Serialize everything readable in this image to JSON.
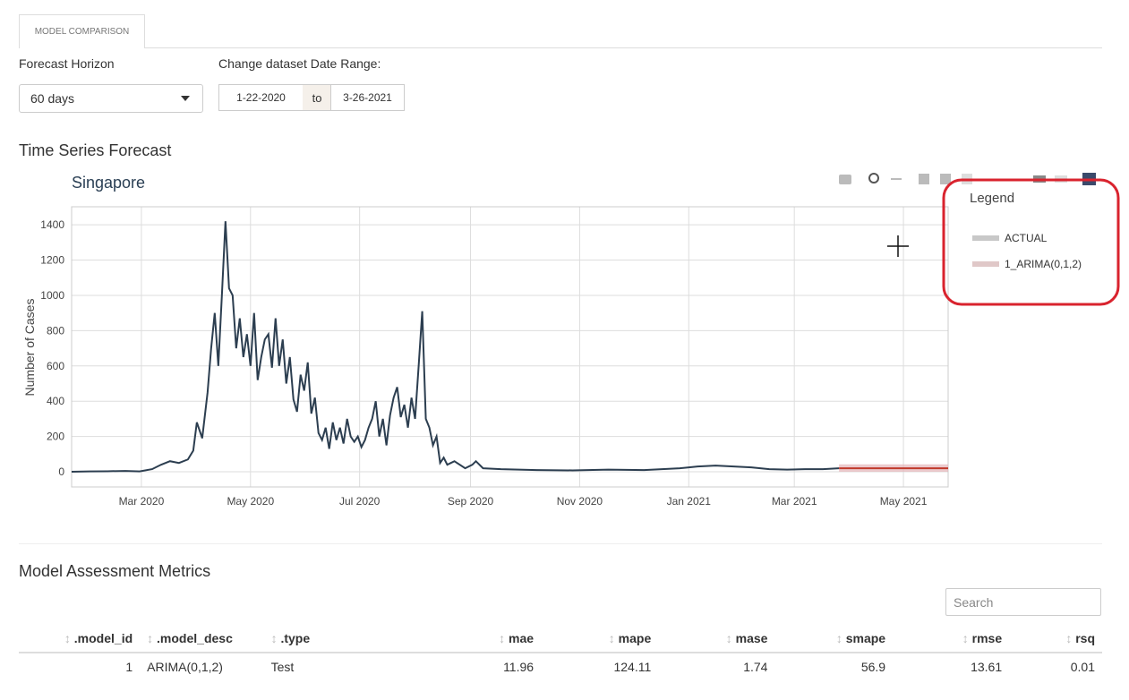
{
  "tab": "MODEL COMPARISON",
  "controls": {
    "horizon_label": "Forecast Horizon",
    "horizon_value": "60 days",
    "range_label": "Change dataset Date Range:",
    "range_start": "1-22-2020",
    "range_sep": "to",
    "range_end": "3-26-2021"
  },
  "section_forecast": "Time Series Forecast",
  "chart_data": {
    "type": "line",
    "title": "Singapore",
    "y_label": "Number of Cases",
    "legend_title": "Legend",
    "legend_position": "right",
    "grid": true,
    "xlim": [
      0,
      490
    ],
    "xticks": [
      {
        "value": 39,
        "label": "Mar 2020"
      },
      {
        "value": 100,
        "label": "May 2020"
      },
      {
        "value": 161,
        "label": "Jul 2020"
      },
      {
        "value": 223,
        "label": "Sep 2020"
      },
      {
        "value": 284,
        "label": "Nov 2020"
      },
      {
        "value": 345,
        "label": "Jan 2021"
      },
      {
        "value": 404,
        "label": "Mar 2021"
      },
      {
        "value": 465,
        "label": "May 2021"
      }
    ],
    "ylim": [
      -86,
      1502
    ],
    "yticks": [
      0,
      200,
      400,
      600,
      800,
      1000,
      1200,
      1400
    ],
    "series": [
      {
        "name": "ACTUAL",
        "color": "#2c3e50",
        "legend_color": "#c8c8c8",
        "x": [
          0,
          10,
          20,
          30,
          38,
          45,
          50,
          55,
          60,
          65,
          68,
          70,
          73,
          76,
          78,
          80,
          82,
          84,
          86,
          88,
          90,
          92,
          94,
          96,
          98,
          100,
          102,
          104,
          106,
          108,
          110,
          112,
          114,
          116,
          118,
          120,
          122,
          124,
          126,
          128,
          130,
          132,
          134,
          136,
          138,
          140,
          142,
          144,
          146,
          148,
          150,
          152,
          154,
          156,
          158,
          160,
          162,
          164,
          166,
          168,
          170,
          172,
          174,
          176,
          178,
          180,
          182,
          184,
          186,
          188,
          190,
          192,
          194,
          196,
          198,
          200,
          202,
          204,
          206,
          208,
          210,
          212,
          214,
          220,
          224,
          226,
          230,
          240,
          260,
          280,
          300,
          320,
          340,
          350,
          360,
          370,
          380,
          390,
          400,
          410,
          420,
          429
        ],
        "values": [
          0,
          2,
          3,
          5,
          2,
          15,
          40,
          60,
          50,
          70,
          120,
          280,
          190,
          450,
          700,
          900,
          600,
          1000,
          1420,
          1040,
          1000,
          700,
          870,
          650,
          780,
          600,
          900,
          520,
          650,
          750,
          780,
          590,
          870,
          600,
          750,
          500,
          650,
          410,
          340,
          550,
          460,
          620,
          330,
          420,
          220,
          180,
          250,
          130,
          280,
          180,
          250,
          160,
          300,
          200,
          170,
          200,
          140,
          180,
          250,
          300,
          400,
          200,
          300,
          150,
          320,
          420,
          480,
          310,
          380,
          250,
          420,
          300,
          600,
          910,
          300,
          250,
          150,
          200,
          50,
          80,
          40,
          50,
          60,
          20,
          40,
          60,
          20,
          15,
          10,
          8,
          12,
          10,
          20,
          30,
          35,
          30,
          25,
          15,
          12,
          15,
          15,
          20
        ]
      },
      {
        "name": "1_ARIMA(0,1,2)",
        "color": "#c0392b",
        "legend_color": "#e0c8c8",
        "band_color": "#e4b4b8",
        "x": [
          429,
          490
        ],
        "values": [
          20,
          20
        ],
        "lower": [
          0,
          0
        ],
        "upper": [
          42,
          42
        ]
      }
    ]
  },
  "section_metrics": "Model Assessment Metrics",
  "search_placeholder": "Search",
  "table": {
    "header": [
      ".model_id",
      ".model_desc",
      ".type",
      "mae",
      "mape",
      "mase",
      "smape",
      "rmse",
      "rsq"
    ],
    "rows": [
      [
        "1",
        "ARIMA(0,1,2)",
        "Test",
        "11.96",
        "124.11",
        "1.74",
        "56.9",
        "13.61",
        "0.01"
      ]
    ]
  }
}
